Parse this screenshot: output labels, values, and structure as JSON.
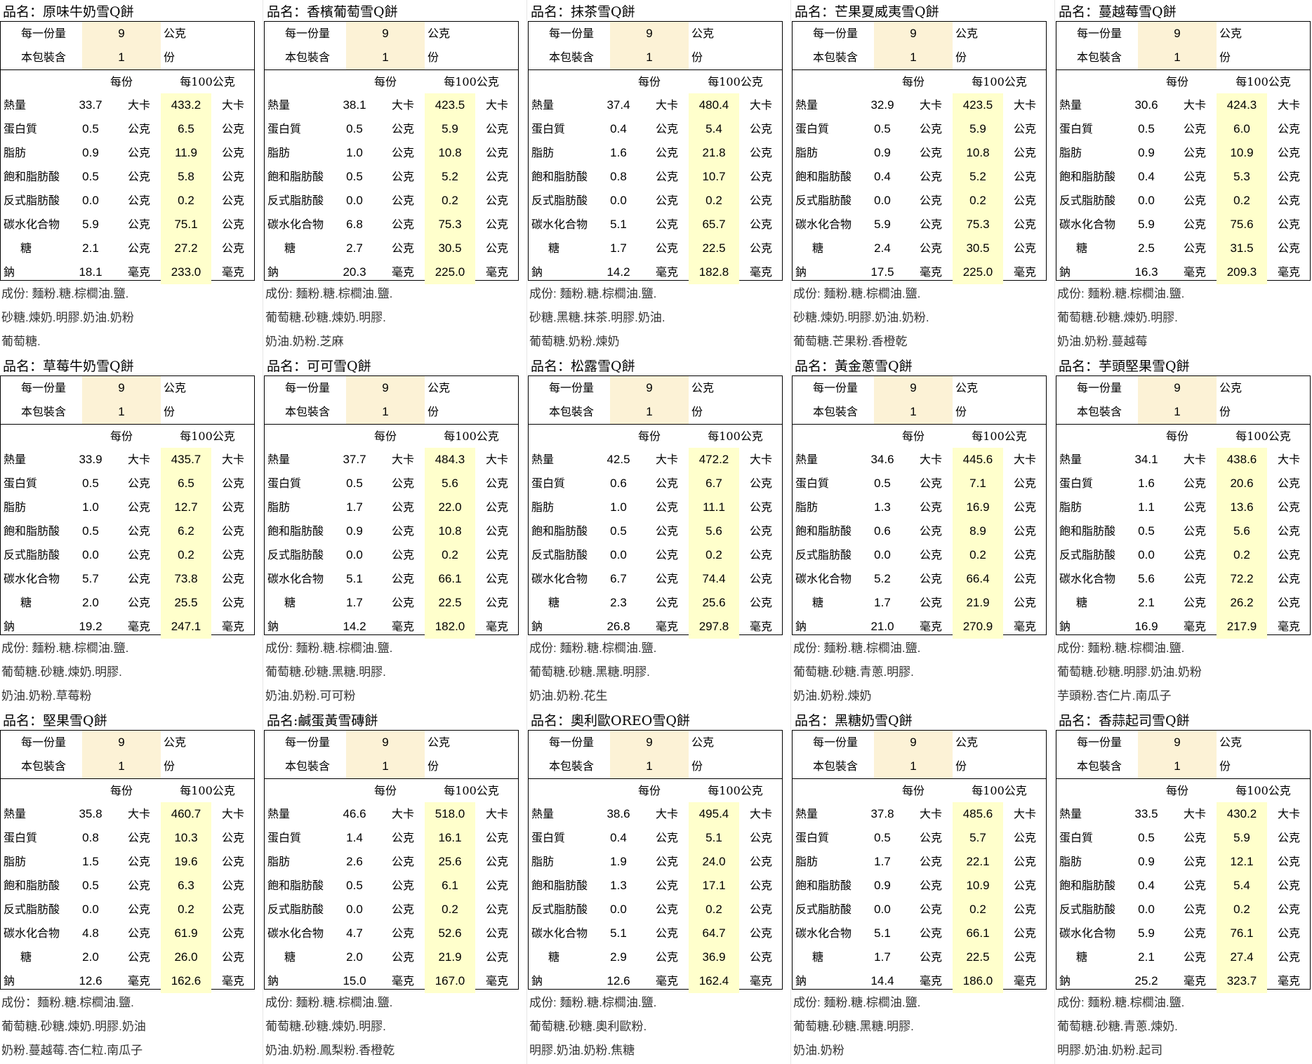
{
  "colors": {
    "serving_bg": "#FCF2D6",
    "per100_bg": "#FFFFCC",
    "border": "#000000",
    "ingredient_text": "#333333"
  },
  "labels": {
    "serving": "每一份量",
    "servings_per_pack": "本包裝含",
    "gram": "公克",
    "portion": "份",
    "per_serving": "每份",
    "per_100g": "每100公克",
    "nutrients": [
      "熱量",
      "蛋白質",
      "脂肪",
      "飽和脂肪酸",
      "反式脂肪酸",
      "碳水化合物",
      "糖",
      "鈉"
    ],
    "units": [
      "大卡",
      "公克",
      "公克",
      "公克",
      "公克",
      "公克",
      "公克",
      "毫克"
    ]
  },
  "products": [
    {
      "title": "品名：原味牛奶雪Q餅",
      "serving": "9",
      "count": "1",
      "per_serving": [
        "33.7",
        "0.5",
        "0.9",
        "0.5",
        "0.0",
        "5.9",
        "2.1",
        "18.1"
      ],
      "per_100": [
        "433.2",
        "6.5",
        "11.9",
        "5.8",
        "0.2",
        "75.1",
        "27.2",
        "233.0"
      ],
      "ingredients": [
        "成份:  麵粉.糖.棕櫚油.鹽.",
        "砂糖.煉奶.明膠.奶油.奶粉",
        "葡萄糖."
      ]
    },
    {
      "title": "品名：香檳葡萄雪Q餅",
      "serving": "9",
      "count": "1",
      "per_serving": [
        "38.1",
        "0.5",
        "1.0",
        "0.5",
        "0.0",
        "6.8",
        "2.7",
        "20.3"
      ],
      "per_100": [
        "423.5",
        "5.9",
        "10.8",
        "5.2",
        "0.2",
        "75.3",
        "30.5",
        "225.0"
      ],
      "ingredients": [
        "成份:  麵粉.糖.棕櫚油.鹽.",
        "葡萄糖.砂糖.煉奶.明膠.",
        "奶油.奶粉.芝麻"
      ]
    },
    {
      "title": "品名：抹茶雪Q餅",
      "serving": "9",
      "count": "1",
      "per_serving": [
        "37.4",
        "0.4",
        "1.6",
        "0.8",
        "0.0",
        "5.1",
        "1.7",
        "14.2"
      ],
      "per_100": [
        "480.4",
        "5.4",
        "21.8",
        "10.7",
        "0.2",
        "65.7",
        "22.5",
        "182.8"
      ],
      "ingredients": [
        "成份:  麵粉.糖.棕櫚油.鹽.",
        "砂糖.黑糖.抹茶.明膠.奶油.",
        "葡萄糖.奶粉.煉奶"
      ]
    },
    {
      "title": "品名：芒果夏威夷雪Q餅",
      "serving": "9",
      "count": "1",
      "per_serving": [
        "32.9",
        "0.5",
        "0.9",
        "0.4",
        "0.0",
        "5.9",
        "2.4",
        "17.5"
      ],
      "per_100": [
        "423.5",
        "5.9",
        "10.8",
        "5.2",
        "0.2",
        "75.3",
        "30.5",
        "225.0"
      ],
      "ingredients": [
        "成份: 麵粉.糖.棕櫚油.鹽.",
        "砂糖.煉奶.明膠.奶油.奶粉.",
        "葡萄糖.芒果粉.香橙乾"
      ]
    },
    {
      "title": "品名：蔓越莓雪Q餅",
      "serving": "9",
      "count": "1",
      "per_serving": [
        "30.6",
        "0.5",
        "0.9",
        "0.4",
        "0.0",
        "5.9",
        "2.5",
        "16.3"
      ],
      "per_100": [
        "424.3",
        "6.0",
        "10.9",
        "5.3",
        "0.2",
        "75.6",
        "31.5",
        "209.3"
      ],
      "ingredients": [
        "成份: 麵粉.糖.棕櫚油.鹽.",
        "葡萄糖.砂糖.煉奶.明膠.",
        "奶油.奶粉.蔓越莓"
      ]
    },
    {
      "title": "品名：草莓牛奶雪Q餅",
      "serving": "9",
      "count": "1",
      "per_serving": [
        "33.9",
        "0.5",
        "1.0",
        "0.5",
        "0.0",
        "5.7",
        "2.0",
        "19.2"
      ],
      "per_100": [
        "435.7",
        "6.5",
        "12.7",
        "6.2",
        "0.2",
        "73.8",
        "25.5",
        "247.1"
      ],
      "ingredients": [
        "成份: 麵粉.糖.棕櫚油.鹽.",
        "葡萄糖.砂糖.煉奶.明膠.",
        "奶油.奶粉.草莓粉"
      ]
    },
    {
      "title": "品名：可可雪Q餅",
      "serving": "9",
      "count": "1",
      "per_serving": [
        "37.7",
        "0.5",
        "1.7",
        "0.9",
        "0.0",
        "5.1",
        "1.7",
        "14.2"
      ],
      "per_100": [
        "484.3",
        "5.6",
        "22.0",
        "10.8",
        "0.2",
        "66.1",
        "22.5",
        "182.0"
      ],
      "ingredients": [
        "成份: 麵粉.糖.棕櫚油.鹽.",
        "葡萄糖.砂糖.黑糖.明膠.",
        "奶油.奶粉.可可粉"
      ]
    },
    {
      "title": "品名：松露雪Q餅",
      "serving": "9",
      "count": "1",
      "per_serving": [
        "42.5",
        "0.6",
        "1.0",
        "0.5",
        "0.0",
        "6.7",
        "2.3",
        "26.8"
      ],
      "per_100": [
        "472.2",
        "6.7",
        "11.1",
        "5.6",
        "0.2",
        "74.4",
        "25.6",
        "297.8"
      ],
      "ingredients": [
        "成份: 麵粉.糖.棕櫚油.鹽.",
        "葡萄糖.砂糖.黑糖.明膠.",
        "奶油.奶粉.花生"
      ]
    },
    {
      "title": "品名：黃金蔥雪Q餅",
      "serving": "9",
      "count": "1",
      "per_serving": [
        "34.6",
        "0.5",
        "1.3",
        "0.6",
        "0.0",
        "5.2",
        "1.7",
        "21.0"
      ],
      "per_100": [
        "445.6",
        "7.1",
        "16.9",
        "8.9",
        "0.2",
        "66.4",
        "21.9",
        "270.9"
      ],
      "ingredients": [
        "成份: 麵粉.糖.棕櫚油.鹽.",
        "葡萄糖.砂糖.青蔥.明膠.",
        "奶油.奶粉.煉奶"
      ]
    },
    {
      "title": "品名：芋頭堅果雪Q餅",
      "serving": "9",
      "count": "1",
      "per_serving": [
        "34.1",
        "1.6",
        "1.1",
        "0.5",
        "0.0",
        "5.6",
        "2.1",
        "16.9"
      ],
      "per_100": [
        "438.6",
        "20.6",
        "13.6",
        "5.6",
        "0.2",
        "72.2",
        "26.2",
        "217.9"
      ],
      "ingredients": [
        "成份: 麵粉.糖.棕櫚油.鹽.",
        "葡萄糖.砂糖.明膠.奶油.奶粉",
        "芋頭粉.杏仁片.南瓜子"
      ]
    },
    {
      "title": "品名：堅果雪Q餅",
      "serving": "9",
      "count": "1",
      "per_serving": [
        "35.8",
        "0.8",
        "1.5",
        "0.5",
        "0.0",
        "4.8",
        "2.0",
        "12.6"
      ],
      "per_100": [
        "460.7",
        "10.3",
        "19.6",
        "6.3",
        "0.2",
        "61.9",
        "26.0",
        "162.6"
      ],
      "ingredients": [
        "成份：麵粉.糖.棕櫚油.鹽.",
        "葡萄糖.砂糖.煉奶.明膠.奶油",
        "奶粉.蔓越莓.杏仁粒.南瓜子"
      ]
    },
    {
      "title": "品名:鹹蛋黃雪磚餅",
      "serving": "9",
      "count": "1",
      "per_serving": [
        "46.6",
        "1.4",
        "2.6",
        "0.5",
        "0.0",
        "4.7",
        "2.0",
        "15.0"
      ],
      "per_100": [
        "518.0",
        "16.1",
        "25.6",
        "6.1",
        "0.2",
        "52.6",
        "21.9",
        "167.0"
      ],
      "ingredients": [
        "成份: 麵粉.糖.棕櫚油.鹽.",
        "葡萄糖.砂糖.煉奶.明膠.",
        "奶油.奶粉.鳳梨粉.香橙乾"
      ]
    },
    {
      "title": "品名：奧利歐OREO雪Q餅",
      "serving": "9",
      "count": "1",
      "per_serving": [
        "38.6",
        "0.4",
        "1.9",
        "1.3",
        "0.0",
        "5.1",
        "2.9",
        "12.6"
      ],
      "per_100": [
        "495.4",
        "5.1",
        "24.0",
        "17.1",
        "0.2",
        "64.7",
        "36.9",
        "162.4"
      ],
      "ingredients": [
        "成份: 麵粉.糖.棕櫚油.鹽.",
        "葡萄糖.砂糖.奧利歐粉.",
        "明膠.奶油.奶粉.焦糖"
      ]
    },
    {
      "title": "品名：黑糖奶雪Q餅",
      "serving": "9",
      "count": "1",
      "per_serving": [
        "37.8",
        "0.5",
        "1.7",
        "0.9",
        "0.0",
        "5.1",
        "1.7",
        "14.4"
      ],
      "per_100": [
        "485.6",
        "5.7",
        "22.1",
        "10.9",
        "0.2",
        "66.1",
        "22.5",
        "186.0"
      ],
      "ingredients": [
        "成份: 麵粉.糖.棕櫚油.鹽.",
        "葡萄糖.砂糖.黑糖.明膠.",
        "奶油.奶粉"
      ]
    },
    {
      "title": "品名：香蒜起司雪Q餅",
      "serving": "9",
      "count": "1",
      "per_serving": [
        "33.5",
        "0.5",
        "0.9",
        "0.4",
        "0.0",
        "5.9",
        "2.1",
        "25.2"
      ],
      "per_100": [
        "430.2",
        "5.9",
        "12.1",
        "5.4",
        "0.2",
        "76.1",
        "27.4",
        "323.7"
      ],
      "ingredients": [
        "成份: 麵粉.糖.棕櫚油.鹽.",
        "葡萄糖.砂糖.青蔥.煉奶.",
        "明膠.奶油.奶粉.起司"
      ]
    }
  ]
}
